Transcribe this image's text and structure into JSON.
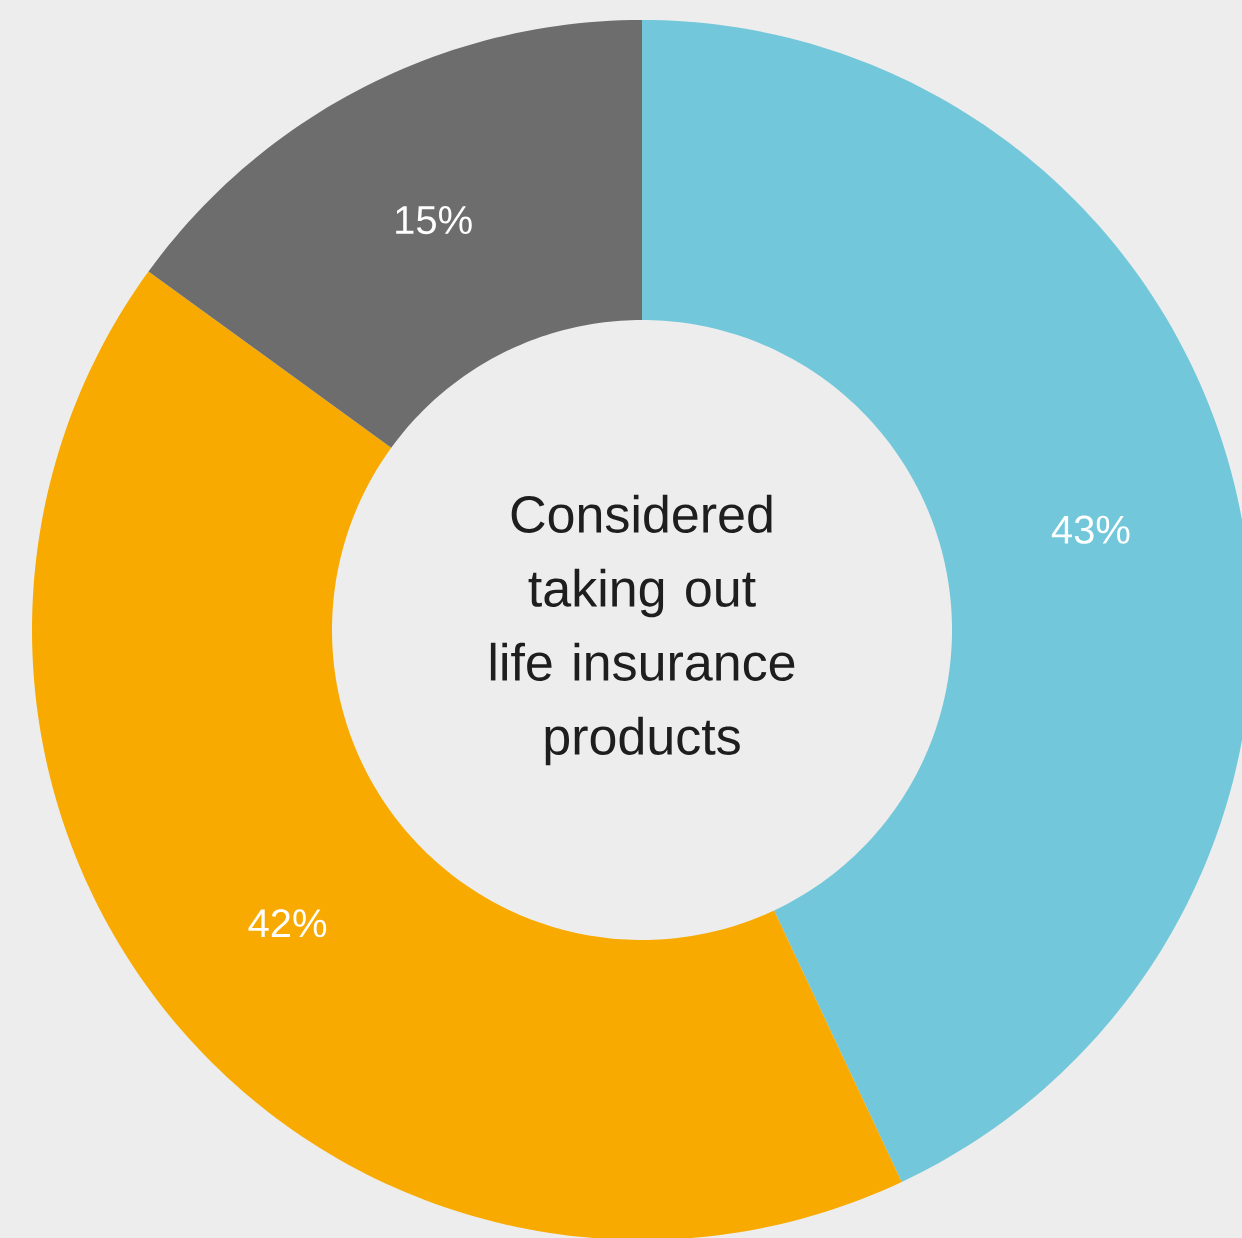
{
  "chart_data": {
    "type": "donut",
    "title": "Considered taking out life insurance products",
    "categories": [
      null,
      null,
      null
    ],
    "values": [
      43,
      42,
      15
    ],
    "colors": [
      "#72c8da",
      "#f8aa00",
      "#6d6d6d"
    ],
    "value_labels": [
      "43%",
      "42%",
      "15%"
    ]
  }
}
